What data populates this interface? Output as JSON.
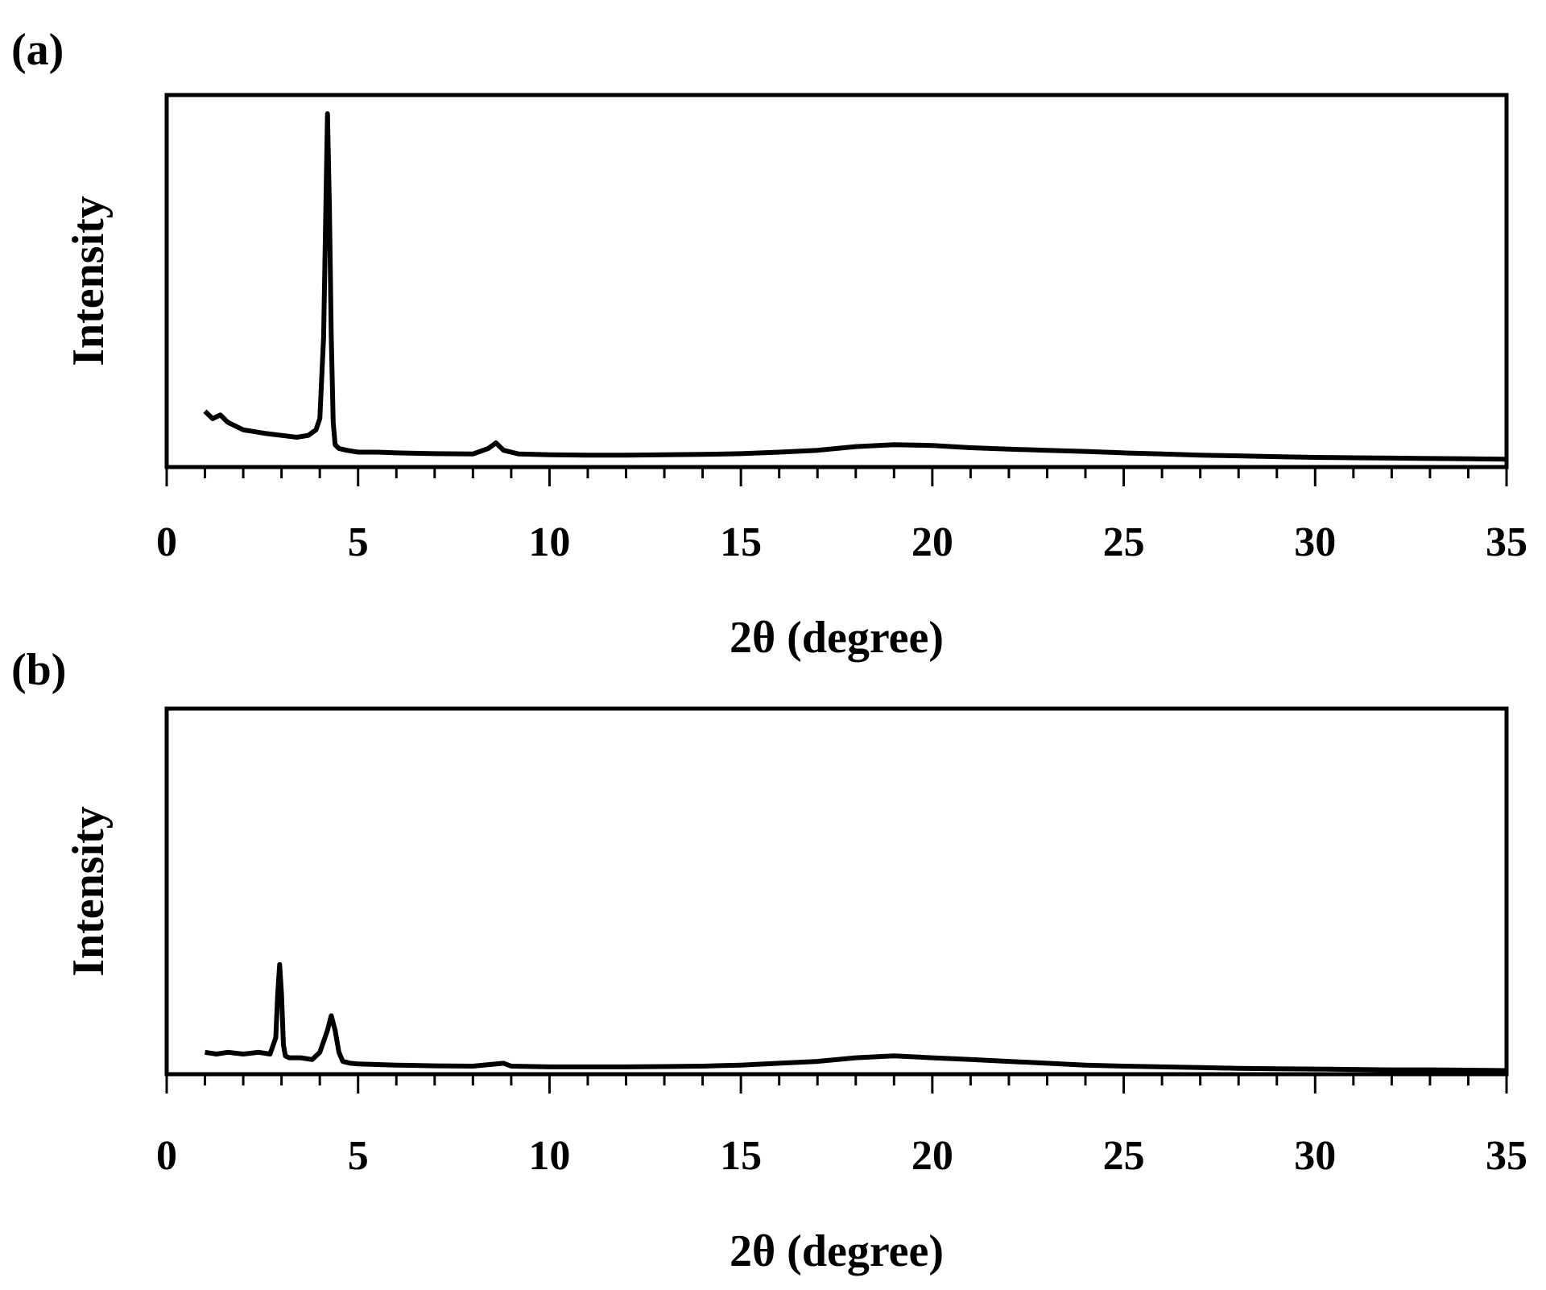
{
  "chart_data": [
    {
      "panel_label": "(a)",
      "type": "line",
      "xlabel": "2θ (degree)",
      "ylabel": "Intensity",
      "xlim": [
        0,
        35
      ],
      "ylim": [
        0,
        1
      ],
      "xticks": [
        "0",
        "5",
        "10",
        "15",
        "20",
        "25",
        "30",
        "35"
      ],
      "grid": false,
      "series": [
        {
          "color": "#000000",
          "x": [
            1.0,
            1.2,
            1.4,
            1.6,
            1.8,
            2.0,
            2.3,
            2.6,
            3.0,
            3.4,
            3.7,
            3.9,
            4.0,
            4.1,
            4.15,
            4.2,
            4.25,
            4.3,
            4.35,
            4.4,
            4.5,
            4.7,
            5.0,
            5.5,
            6.0,
            7.0,
            8.0,
            8.4,
            8.6,
            8.8,
            9.2,
            10,
            11,
            12,
            13,
            14,
            15,
            16,
            17,
            18,
            19,
            20,
            21,
            22,
            23,
            24,
            25,
            26,
            27,
            28,
            29,
            30,
            31,
            32,
            33,
            34,
            35
          ],
          "values": [
            0.15,
            0.13,
            0.14,
            0.12,
            0.11,
            0.1,
            0.095,
            0.09,
            0.085,
            0.08,
            0.085,
            0.1,
            0.13,
            0.35,
            0.65,
            0.95,
            0.7,
            0.35,
            0.12,
            0.06,
            0.05,
            0.045,
            0.04,
            0.04,
            0.038,
            0.036,
            0.035,
            0.05,
            0.065,
            0.045,
            0.035,
            0.033,
            0.032,
            0.032,
            0.033,
            0.034,
            0.036,
            0.04,
            0.045,
            0.055,
            0.06,
            0.058,
            0.052,
            0.048,
            0.045,
            0.042,
            0.038,
            0.035,
            0.032,
            0.03,
            0.028,
            0.026,
            0.025,
            0.024,
            0.023,
            0.022,
            0.021
          ]
        }
      ]
    },
    {
      "panel_label": "(b)",
      "type": "line",
      "xlabel": "2θ (degree)",
      "ylabel": "Intensity",
      "xlim": [
        0,
        35
      ],
      "ylim": [
        0,
        1
      ],
      "xticks": [
        "0",
        "5",
        "10",
        "15",
        "20",
        "25",
        "30",
        "35"
      ],
      "grid": false,
      "series": [
        {
          "color": "#000000",
          "x": [
            1.0,
            1.3,
            1.6,
            2.0,
            2.4,
            2.7,
            2.85,
            2.9,
            2.95,
            3.0,
            3.05,
            3.1,
            3.2,
            3.5,
            3.8,
            4.0,
            4.2,
            4.3,
            4.4,
            4.5,
            4.6,
            4.8,
            5.0,
            6.0,
            7.0,
            8.0,
            8.8,
            9.0,
            10,
            11,
            12,
            13,
            14,
            15,
            16,
            17,
            18,
            19,
            20,
            21,
            22,
            23,
            24,
            25,
            26,
            27,
            28,
            29,
            30,
            31,
            32,
            33,
            34,
            35
          ],
          "values": [
            0.06,
            0.055,
            0.06,
            0.055,
            0.06,
            0.055,
            0.1,
            0.22,
            0.3,
            0.22,
            0.08,
            0.05,
            0.045,
            0.045,
            0.04,
            0.06,
            0.12,
            0.16,
            0.12,
            0.06,
            0.035,
            0.03,
            0.028,
            0.025,
            0.023,
            0.022,
            0.03,
            0.022,
            0.02,
            0.02,
            0.02,
            0.021,
            0.022,
            0.025,
            0.03,
            0.035,
            0.045,
            0.05,
            0.045,
            0.04,
            0.035,
            0.03,
            0.025,
            0.022,
            0.02,
            0.018,
            0.016,
            0.015,
            0.014,
            0.013,
            0.012,
            0.012,
            0.011,
            0.01
          ]
        }
      ]
    }
  ]
}
